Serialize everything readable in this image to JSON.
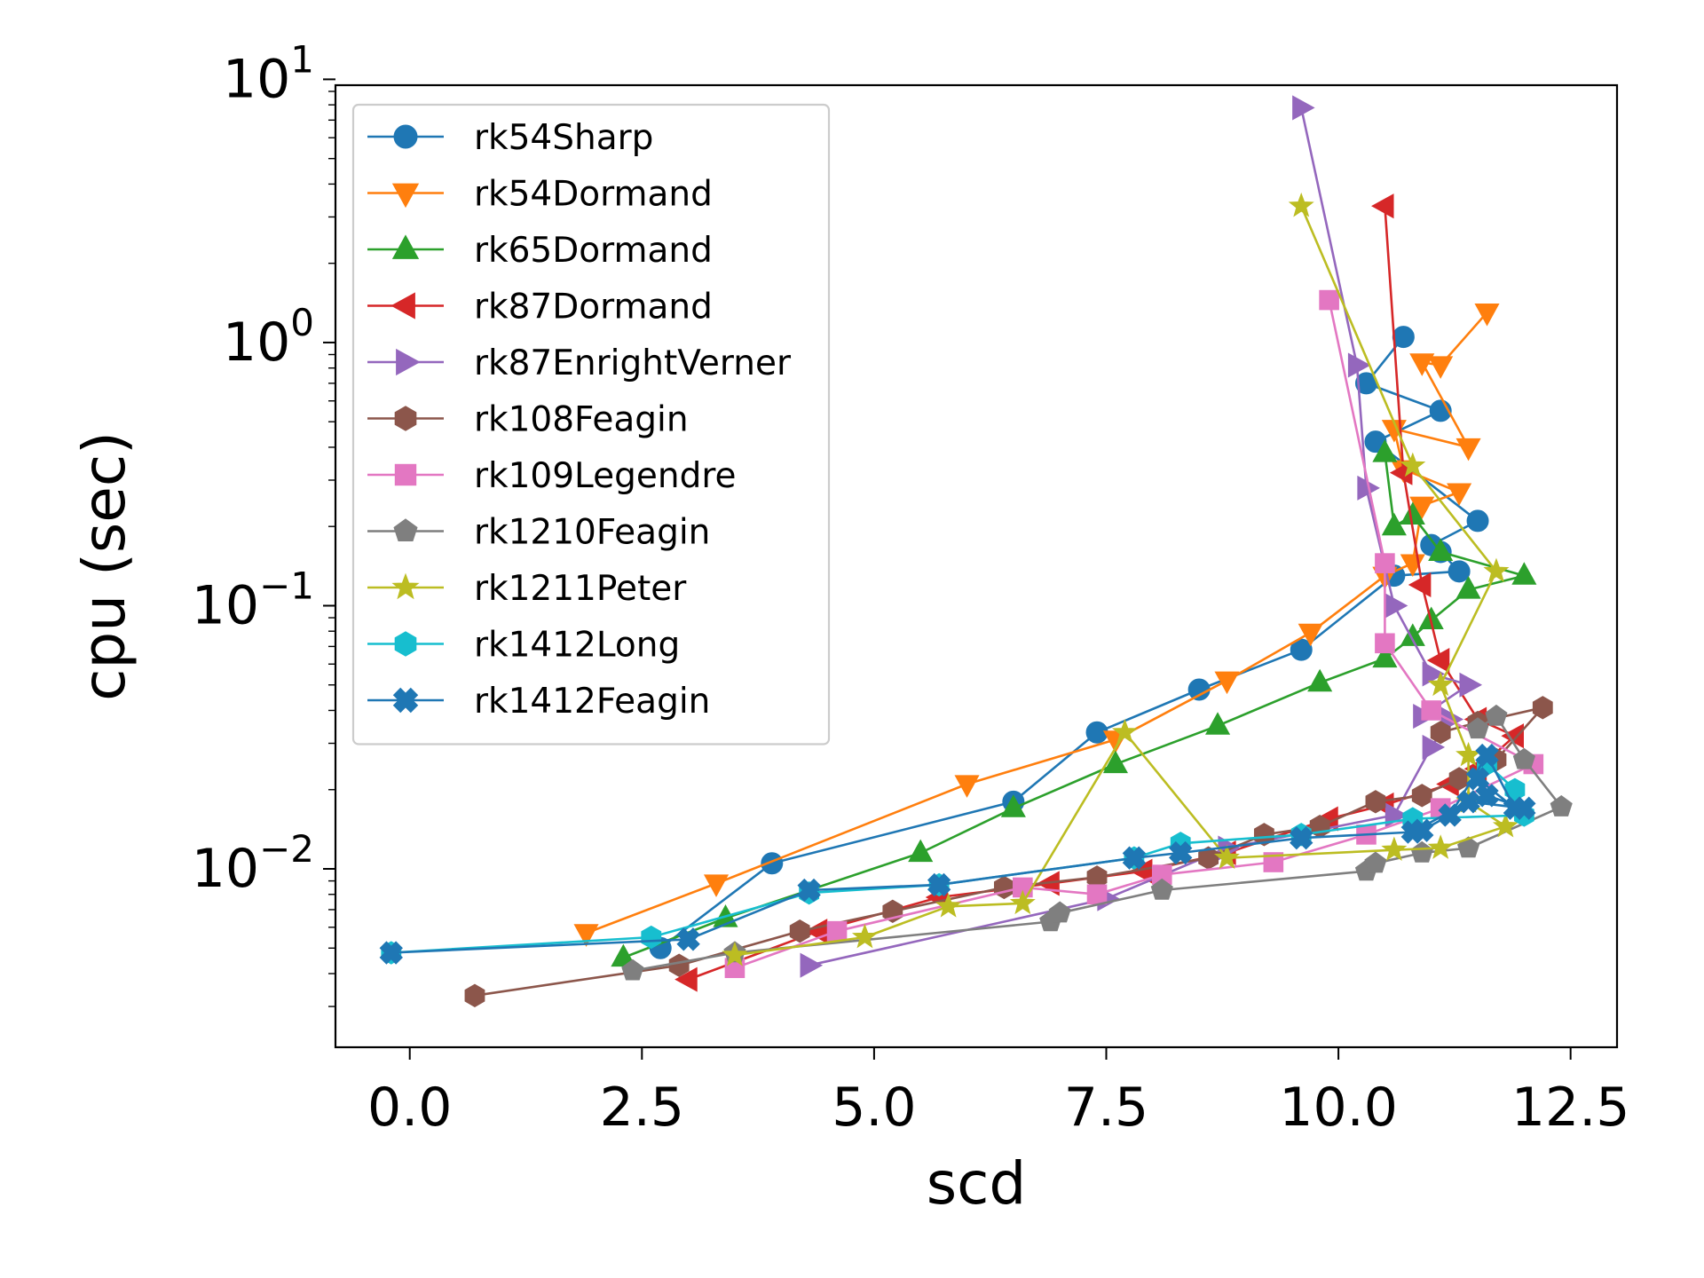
{
  "chart_data": {
    "type": "line",
    "title": "",
    "xlabel": "scd",
    "ylabel": "cpu (sec)",
    "xlim": [
      -0.8,
      13.0
    ],
    "ylim": [
      0.0021,
      9.5
    ],
    "yscale": "log",
    "xticks": [
      0.0,
      2.5,
      5.0,
      7.5,
      10.0,
      12.5
    ],
    "xtick_labels": [
      "0.0",
      "2.5",
      "5.0",
      "7.5",
      "10.0",
      "12.5"
    ],
    "yticks": [
      0.01,
      0.1,
      1,
      10
    ],
    "ytick_labels": [
      {
        "base": "10",
        "exp": "−2"
      },
      {
        "base": "10",
        "exp": "−1"
      },
      {
        "base": "10",
        "exp": "0"
      },
      {
        "base": "10",
        "exp": "1"
      }
    ],
    "grid": false,
    "legend_position": "upper-left",
    "series": [
      {
        "name": "rk54Sharp",
        "color": "#1f77b4",
        "marker": "circle",
        "x": [
          2.7,
          3.9,
          6.5,
          7.4,
          8.5,
          9.6,
          10.6,
          11.3,
          11.1,
          11.0,
          11.5,
          10.4,
          11.1,
          10.3,
          10.7
        ],
        "y": [
          0.005,
          0.0105,
          0.018,
          0.033,
          0.048,
          0.068,
          0.13,
          0.135,
          0.16,
          0.17,
          0.21,
          0.42,
          0.55,
          0.7,
          1.05
        ]
      },
      {
        "name": "rk54Dormand",
        "color": "#ff7f0e",
        "marker": "triangle-down",
        "x": [
          1.9,
          3.3,
          6.0,
          7.6,
          8.8,
          9.7,
          10.5,
          10.8,
          10.9,
          11.3,
          10.7,
          10.6,
          11.4,
          10.9,
          11.1,
          11.6
        ],
        "y": [
          0.0057,
          0.0088,
          0.021,
          0.031,
          0.052,
          0.079,
          0.13,
          0.145,
          0.24,
          0.27,
          0.33,
          0.47,
          0.4,
          0.84,
          0.82,
          1.3
        ]
      },
      {
        "name": "rk65Dormand",
        "color": "#2ca02c",
        "marker": "triangle-up",
        "x": [
          2.3,
          3.4,
          5.5,
          6.5,
          7.6,
          8.7,
          9.8,
          10.5,
          10.8,
          11.0,
          11.4,
          12.0,
          11.1,
          10.8,
          10.6,
          10.5
        ],
        "y": [
          0.0046,
          0.0065,
          0.0115,
          0.017,
          0.025,
          0.035,
          0.051,
          0.063,
          0.076,
          0.088,
          0.115,
          0.13,
          0.16,
          0.22,
          0.2,
          0.38
        ]
      },
      {
        "name": "rk87Dormand",
        "color": "#d62728",
        "marker": "triangle-left",
        "x": [
          3.0,
          4.4,
          5.7,
          6.9,
          7.9,
          8.8,
          9.9,
          10.5,
          11.2,
          11.5,
          11.9,
          11.5,
          11.1,
          10.9,
          10.7,
          10.5
        ],
        "y": [
          0.0038,
          0.0058,
          0.0078,
          0.0088,
          0.0098,
          0.0115,
          0.0155,
          0.0175,
          0.021,
          0.024,
          0.032,
          0.037,
          0.062,
          0.12,
          0.32,
          3.3
        ]
      },
      {
        "name": "rk87EnrightVerner",
        "color": "#9467bd",
        "marker": "triangle-right",
        "x": [
          4.3,
          7.5,
          8.8,
          10.6,
          11.0,
          11.2,
          10.9,
          11.4,
          11.0,
          10.6,
          10.3,
          10.2,
          9.6
        ],
        "y": [
          0.0043,
          0.0077,
          0.012,
          0.016,
          0.029,
          0.037,
          0.038,
          0.05,
          0.055,
          0.1,
          0.28,
          0.82,
          7.8
        ]
      },
      {
        "name": "rk108Feagin",
        "color": "#8c564b",
        "marker": "hexagon",
        "x": [
          0.7,
          2.9,
          4.2,
          5.2,
          6.4,
          7.4,
          8.6,
          9.2,
          9.8,
          10.4,
          10.9,
          11.3,
          11.7,
          12.2,
          11.5,
          11.1
        ],
        "y": [
          0.0033,
          0.0043,
          0.0058,
          0.0069,
          0.0085,
          0.0093,
          0.011,
          0.0135,
          0.0145,
          0.018,
          0.019,
          0.022,
          0.026,
          0.041,
          0.036,
          0.033
        ]
      },
      {
        "name": "rk109Legendre",
        "color": "#e377c2",
        "marker": "square",
        "x": [
          3.5,
          4.6,
          6.6,
          7.4,
          8.1,
          9.3,
          10.3,
          11.1,
          12.1,
          11.0,
          10.5,
          10.5,
          9.9
        ],
        "y": [
          0.0042,
          0.0058,
          0.0085,
          0.008,
          0.0095,
          0.0106,
          0.0135,
          0.017,
          0.025,
          0.04,
          0.072,
          0.145,
          1.45
        ]
      },
      {
        "name": "rk1210Feagin",
        "color": "#7f7f7f",
        "marker": "pentagon",
        "x": [
          2.4,
          3.5,
          6.9,
          7.0,
          8.1,
          10.3,
          10.4,
          10.9,
          11.4,
          12.4,
          12.0,
          11.7,
          11.5
        ],
        "y": [
          0.0041,
          0.0048,
          0.0063,
          0.0068,
          0.0083,
          0.0098,
          0.0105,
          0.0115,
          0.012,
          0.0172,
          0.026,
          0.038,
          0.034
        ]
      },
      {
        "name": "rk1211Peter",
        "color": "#bcbd22",
        "marker": "star",
        "x": [
          3.5,
          4.9,
          5.8,
          6.6,
          7.7,
          8.8,
          10.6,
          11.1,
          11.8,
          11.4,
          11.4,
          11.1,
          11.7,
          10.8,
          9.6
        ],
        "y": [
          0.0047,
          0.0055,
          0.0072,
          0.0074,
          0.033,
          0.011,
          0.0118,
          0.012,
          0.0145,
          0.018,
          0.027,
          0.05,
          0.135,
          0.34,
          3.3
        ]
      },
      {
        "name": "rk1412Long",
        "color": "#17becf",
        "marker": "hexagon",
        "x": [
          -0.2,
          2.6,
          4.3,
          5.7,
          7.8,
          8.3,
          9.6,
          10.8,
          12.0,
          11.9,
          11.6
        ],
        "y": [
          0.0048,
          0.0055,
          0.0081,
          0.0087,
          0.011,
          0.0125,
          0.0135,
          0.0155,
          0.016,
          0.02,
          0.025
        ]
      },
      {
        "name": "rk1412Feagin",
        "color": "#1f77b4",
        "marker": "x",
        "x": [
          -0.2,
          3.0,
          4.3,
          5.7,
          7.8,
          8.3,
          9.6,
          10.8,
          11.4,
          12.0,
          11.6,
          11.5,
          11.9,
          11.6,
          11.2,
          10.9
        ],
        "y": [
          0.0048,
          0.0054,
          0.0083,
          0.0087,
          0.011,
          0.0115,
          0.0131,
          0.0138,
          0.018,
          0.017,
          0.019,
          0.022,
          0.017,
          0.027,
          0.016,
          0.014
        ]
      }
    ]
  }
}
